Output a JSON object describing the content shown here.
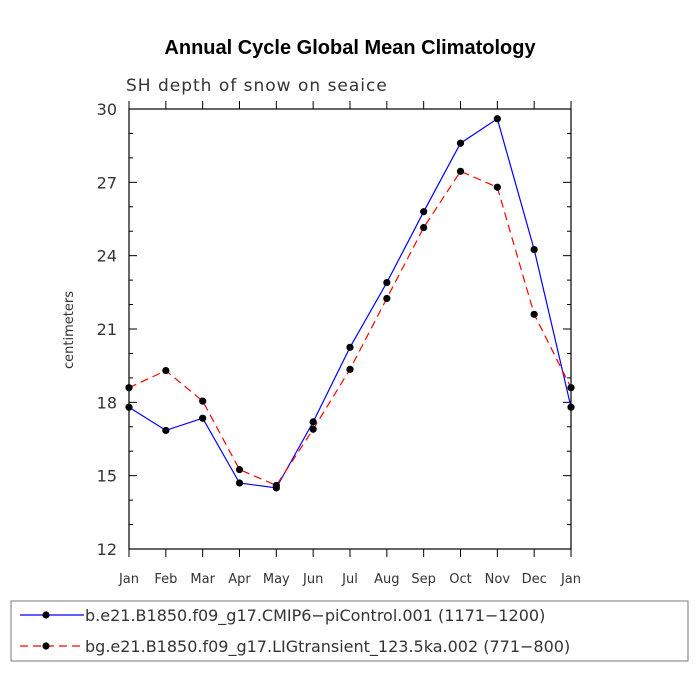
{
  "chart_data": {
    "type": "line",
    "title": "Annual Cycle Global Mean Climatology",
    "subtitle": "SH depth of snow on seaice",
    "xlabel": "",
    "ylabel": "centimeters",
    "categories": [
      "Jan",
      "Feb",
      "Mar",
      "Apr",
      "May",
      "Jun",
      "Jul",
      "Aug",
      "Sep",
      "Oct",
      "Nov",
      "Dec",
      "Jan"
    ],
    "ylim": [
      12,
      30
    ],
    "yticks": [
      "12",
      "15",
      "18",
      "21",
      "24",
      "27",
      "30"
    ],
    "series": [
      {
        "name": "b.e21.B1850.f09_g17.CMIP6−piControl.001 (1171−1200)",
        "color": "#0000ff",
        "dash": "solid",
        "values": [
          17.8,
          16.85,
          17.35,
          14.7,
          14.5,
          17.2,
          20.25,
          22.9,
          25.8,
          28.6,
          29.6,
          24.25,
          17.8
        ]
      },
      {
        "name": "bg.e21.B1850.f09_g17.LIGtransient_123.5ka.002 (771−800)",
        "color": "#ff0000",
        "dash": "dashed",
        "values": [
          18.6,
          19.3,
          18.05,
          15.25,
          14.6,
          16.9,
          19.35,
          22.25,
          25.15,
          27.45,
          26.8,
          21.6,
          18.6
        ]
      }
    ],
    "marker_color": "#000000",
    "legend_position": "bottom"
  }
}
